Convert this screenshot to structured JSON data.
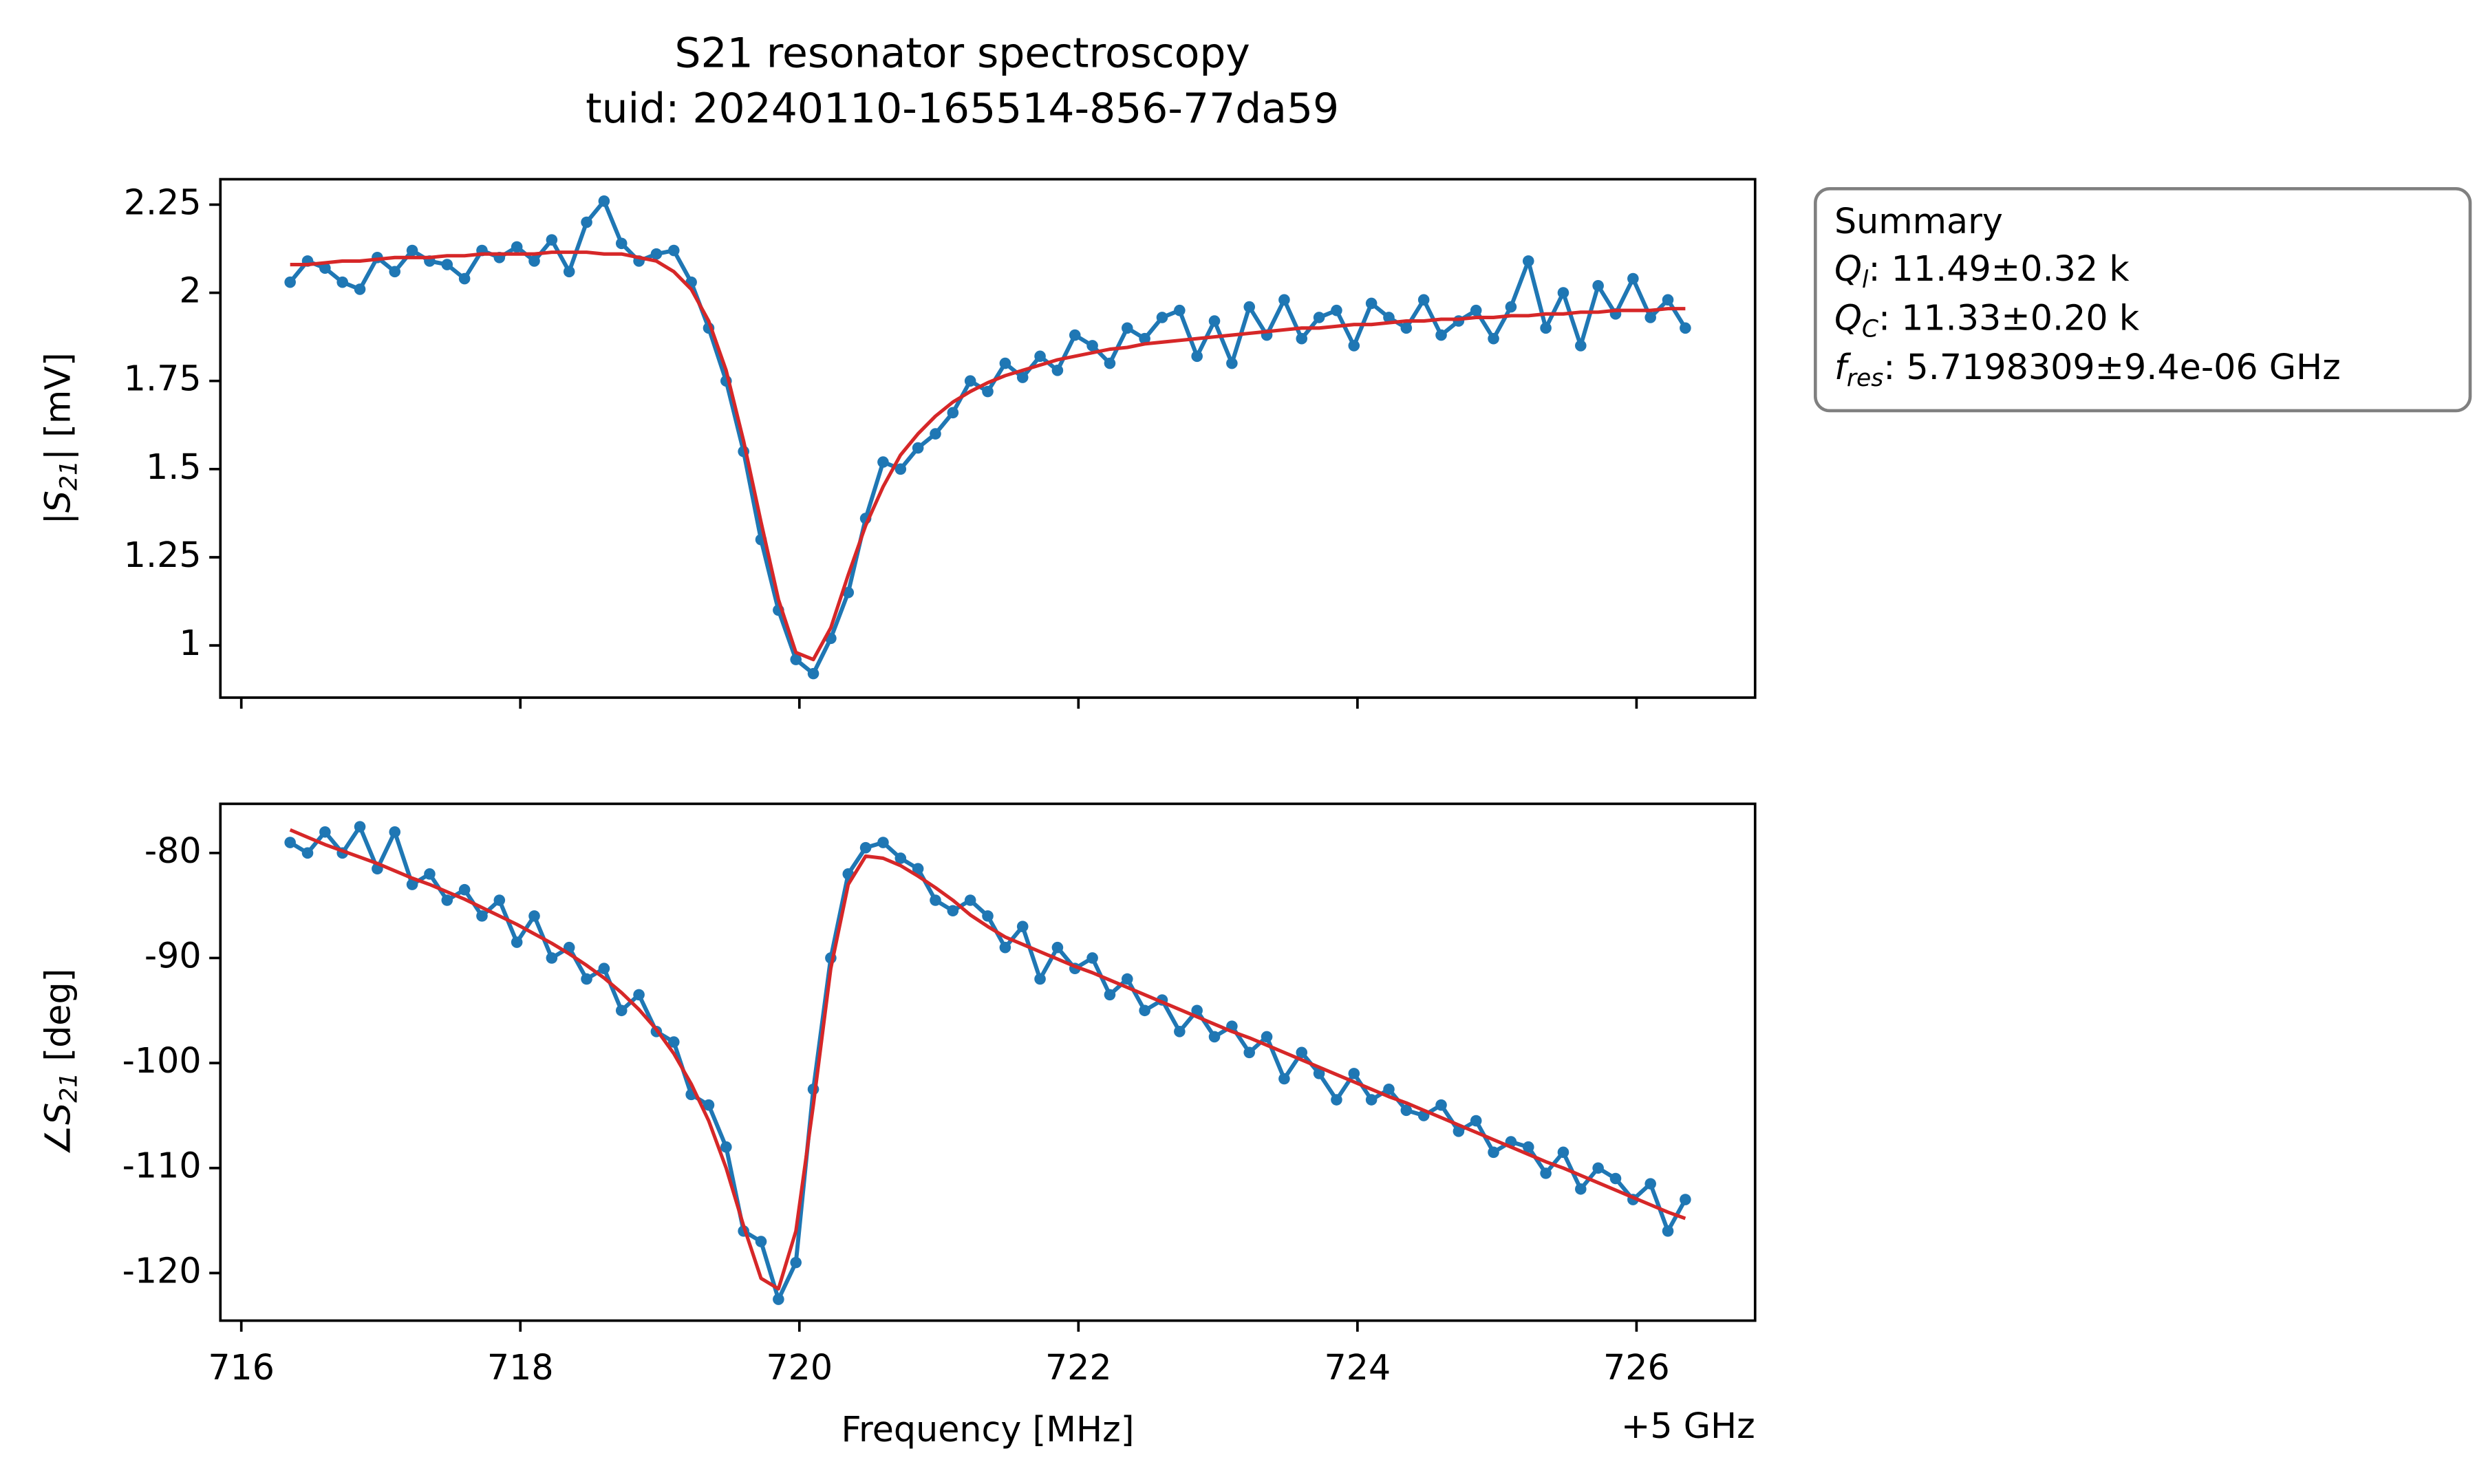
{
  "suptitle": [
    "S21 resonator spectroscopy",
    "tuid: 20240110-165514-856-77da59"
  ],
  "summary": {
    "title": "Summary",
    "items": [
      {
        "symbol": "Q",
        "subscript": "l",
        "text": ": 11.49±0.32 k"
      },
      {
        "symbol": "Q",
        "subscript": "C",
        "text": ": 11.33±0.20 k"
      },
      {
        "symbol": "f",
        "subscript": "res",
        "text": ": 5.7198309±9.4e-06 GHz"
      }
    ]
  },
  "chart_data": [
    {
      "type": "line",
      "ylabel": {
        "prefix": "|",
        "symbol": "S",
        "subscript": "21",
        "suffix": "| [mV]"
      },
      "x": [
        716.35,
        716.475,
        716.6,
        716.725,
        716.85,
        716.975,
        717.1,
        717.225,
        717.35,
        717.475,
        717.6,
        717.725,
        717.85,
        717.975,
        718.1,
        718.225,
        718.35,
        718.475,
        718.6,
        718.725,
        718.85,
        718.975,
        719.1,
        719.225,
        719.35,
        719.475,
        719.6,
        719.725,
        719.85,
        719.975,
        720.1,
        720.225,
        720.35,
        720.475,
        720.6,
        720.725,
        720.85,
        720.975,
        721.1,
        721.225,
        721.35,
        721.475,
        721.6,
        721.725,
        721.85,
        721.975,
        722.1,
        722.225,
        722.35,
        722.475,
        722.6,
        722.725,
        722.85,
        722.975,
        723.1,
        723.225,
        723.35,
        723.475,
        723.6,
        723.725,
        723.85,
        723.975,
        724.1,
        724.225,
        724.35,
        724.475,
        724.6,
        724.725,
        724.85,
        724.975,
        725.1,
        725.225,
        725.35,
        725.475,
        725.6,
        725.725,
        725.85,
        725.975,
        726.1,
        726.225,
        726.35
      ],
      "series": [
        {
          "color": "#1f77b4",
          "marker": "o",
          "values": [
            2.03,
            2.09,
            2.07,
            2.03,
            2.01,
            2.1,
            2.06,
            2.12,
            2.09,
            2.08,
            2.04,
            2.12,
            2.1,
            2.13,
            2.09,
            2.15,
            2.06,
            2.2,
            2.26,
            2.14,
            2.09,
            2.11,
            2.12,
            2.03,
            1.9,
            1.75,
            1.55,
            1.3,
            1.1,
            0.96,
            0.92,
            1.02,
            1.15,
            1.36,
            1.52,
            1.5,
            1.56,
            1.6,
            1.66,
            1.75,
            1.72,
            1.8,
            1.76,
            1.82,
            1.78,
            1.88,
            1.85,
            1.8,
            1.9,
            1.87,
            1.93,
            1.95,
            1.82,
            1.92,
            1.8,
            1.96,
            1.88,
            1.98,
            1.87,
            1.93,
            1.95,
            1.85,
            1.97,
            1.93,
            1.9,
            1.98,
            1.88,
            1.92,
            1.95,
            1.87,
            1.96,
            2.09,
            1.9,
            2.0,
            1.85,
            2.02,
            1.94,
            2.04,
            1.93,
            1.98,
            1.9
          ]
        },
        {
          "color": "#d62728",
          "values": [
            2.08,
            2.08,
            2.085,
            2.09,
            2.09,
            2.095,
            2.1,
            2.1,
            2.1,
            2.105,
            2.105,
            2.11,
            2.11,
            2.11,
            2.11,
            2.115,
            2.115,
            2.115,
            2.11,
            2.11,
            2.1,
            2.09,
            2.06,
            2.01,
            1.92,
            1.78,
            1.58,
            1.35,
            1.13,
            0.98,
            0.96,
            1.05,
            1.2,
            1.34,
            1.45,
            1.54,
            1.6,
            1.65,
            1.69,
            1.72,
            1.745,
            1.765,
            1.78,
            1.795,
            1.81,
            1.82,
            1.83,
            1.84,
            1.845,
            1.855,
            1.86,
            1.865,
            1.87,
            1.875,
            1.88,
            1.885,
            1.89,
            1.895,
            1.9,
            1.9,
            1.905,
            1.91,
            1.91,
            1.915,
            1.92,
            1.92,
            1.925,
            1.925,
            1.93,
            1.93,
            1.935,
            1.935,
            1.94,
            1.94,
            1.945,
            1.945,
            1.95,
            1.95,
            1.95,
            1.955,
            1.955
          ]
        }
      ],
      "xlim": [
        715.85,
        726.85
      ],
      "xticks": [
        716,
        718,
        720,
        722,
        724,
        726
      ],
      "show_xticklabels": false,
      "ylim": [
        0.852,
        2.322
      ],
      "yticks": [
        1,
        1.25,
        1.5,
        1.75,
        2,
        2.25
      ]
    },
    {
      "type": "line",
      "ylabel": {
        "prefix": "∠",
        "symbol": "S",
        "subscript": "21",
        "suffix": " [deg]"
      },
      "xlabel": "Frequency [MHz]",
      "x_offset_label": "+5 GHz",
      "x": [
        716.35,
        716.475,
        716.6,
        716.725,
        716.85,
        716.975,
        717.1,
        717.225,
        717.35,
        717.475,
        717.6,
        717.725,
        717.85,
        717.975,
        718.1,
        718.225,
        718.35,
        718.475,
        718.6,
        718.725,
        718.85,
        718.975,
        719.1,
        719.225,
        719.35,
        719.475,
        719.6,
        719.725,
        719.85,
        719.975,
        720.1,
        720.225,
        720.35,
        720.475,
        720.6,
        720.725,
        720.85,
        720.975,
        721.1,
        721.225,
        721.35,
        721.475,
        721.6,
        721.725,
        721.85,
        721.975,
        722.1,
        722.225,
        722.35,
        722.475,
        722.6,
        722.725,
        722.85,
        722.975,
        723.1,
        723.225,
        723.35,
        723.475,
        723.6,
        723.725,
        723.85,
        723.975,
        724.1,
        724.225,
        724.35,
        724.475,
        724.6,
        724.725,
        724.85,
        724.975,
        725.1,
        725.225,
        725.35,
        725.475,
        725.6,
        725.725,
        725.85,
        725.975,
        726.1,
        726.225,
        726.35
      ],
      "series": [
        {
          "color": "#1f77b4",
          "marker": "o",
          "values": [
            -79,
            -80,
            -78,
            -80,
            -77.5,
            -81.5,
            -78,
            -83,
            -82,
            -84.5,
            -83.5,
            -86,
            -84.5,
            -88.5,
            -86,
            -90,
            -89,
            -92,
            -91,
            -95,
            -93.5,
            -97,
            -98,
            -103,
            -104,
            -108,
            -116,
            -117,
            -122.5,
            -119,
            -102.5,
            -90,
            -82,
            -79.5,
            -79,
            -80.5,
            -81.5,
            -84.5,
            -85.5,
            -84.5,
            -86,
            -89,
            -87,
            -92,
            -89,
            -91,
            -90,
            -93.5,
            -92,
            -95,
            -94,
            -97,
            -95,
            -97.5,
            -96.5,
            -99,
            -97.5,
            -101.5,
            -99,
            -101,
            -103.5,
            -101,
            -103.5,
            -102.5,
            -104.5,
            -105,
            -104,
            -106.5,
            -105.5,
            -108.5,
            -107.5,
            -108,
            -110.5,
            -108.5,
            -112,
            -110,
            -111,
            -113,
            -111.5,
            -116,
            -113
          ]
        },
        {
          "color": "#d62728",
          "values": [
            -77.8,
            -78.5,
            -79.2,
            -79.8,
            -80.4,
            -81,
            -81.7,
            -82.4,
            -83,
            -83.7,
            -84.4,
            -85.2,
            -86,
            -86.8,
            -87.7,
            -88.6,
            -89.6,
            -90.7,
            -91.9,
            -93.3,
            -94.9,
            -96.8,
            -99.1,
            -102,
            -105.5,
            -110,
            -115.5,
            -120.5,
            -121.5,
            -116,
            -104,
            -91,
            -83,
            -80.3,
            -80.5,
            -81.2,
            -82.2,
            -83.3,
            -84.5,
            -85.9,
            -87,
            -88,
            -88.7,
            -89.4,
            -90.1,
            -90.8,
            -91.4,
            -92.1,
            -92.8,
            -93.5,
            -94.2,
            -94.9,
            -95.6,
            -96.3,
            -97,
            -97.6,
            -98.3,
            -99,
            -99.7,
            -100.4,
            -101.1,
            -101.8,
            -102.5,
            -103.2,
            -103.8,
            -104.5,
            -105.2,
            -105.9,
            -106.6,
            -107.3,
            -108,
            -108.7,
            -109.4,
            -110,
            -110.7,
            -111.4,
            -112.1,
            -112.8,
            -113.5,
            -114.2,
            -114.8
          ]
        }
      ],
      "xlim": [
        715.85,
        726.85
      ],
      "xticks": [
        716,
        718,
        720,
        722,
        724,
        726
      ],
      "show_xticklabels": true,
      "ylim": [
        -124.53,
        -75.32
      ],
      "yticks": [
        -80,
        -90,
        -100,
        -110,
        -120
      ]
    }
  ]
}
